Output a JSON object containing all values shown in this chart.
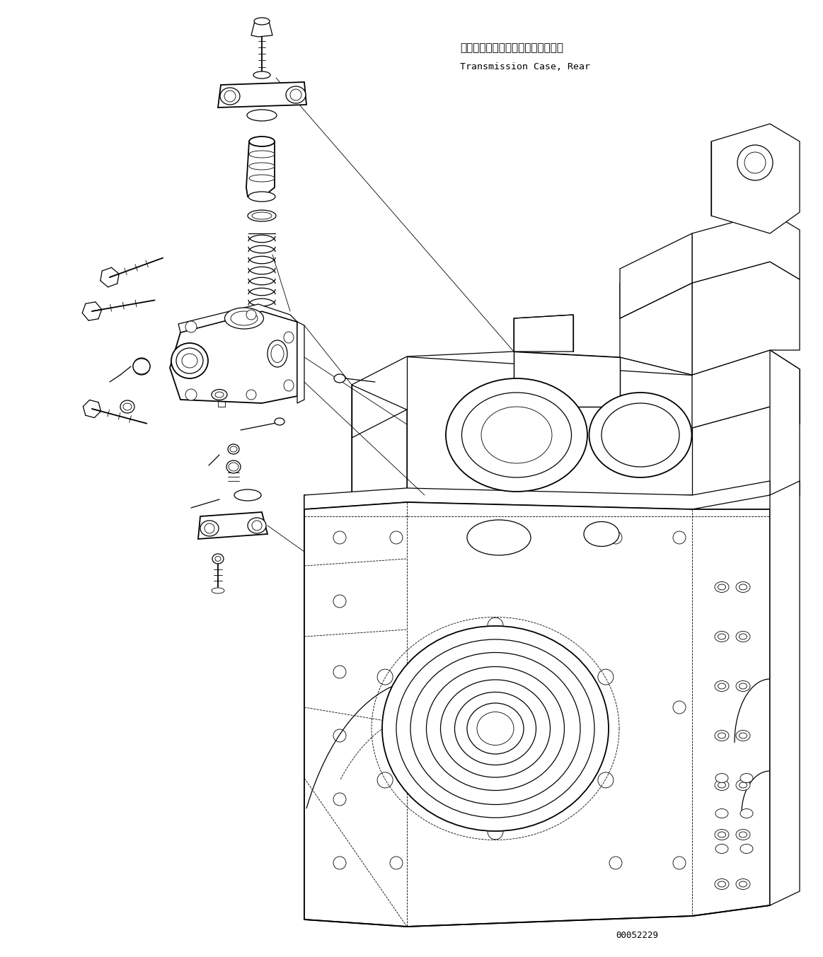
{
  "bg_color": "#ffffff",
  "line_color": "#000000",
  "label_jp": "トランスミッションケース、リヤー",
  "label_en": "Transmission Case, Rear",
  "part_number": "00052229",
  "fig_width": 11.63,
  "fig_height": 13.53,
  "dpi": 100
}
